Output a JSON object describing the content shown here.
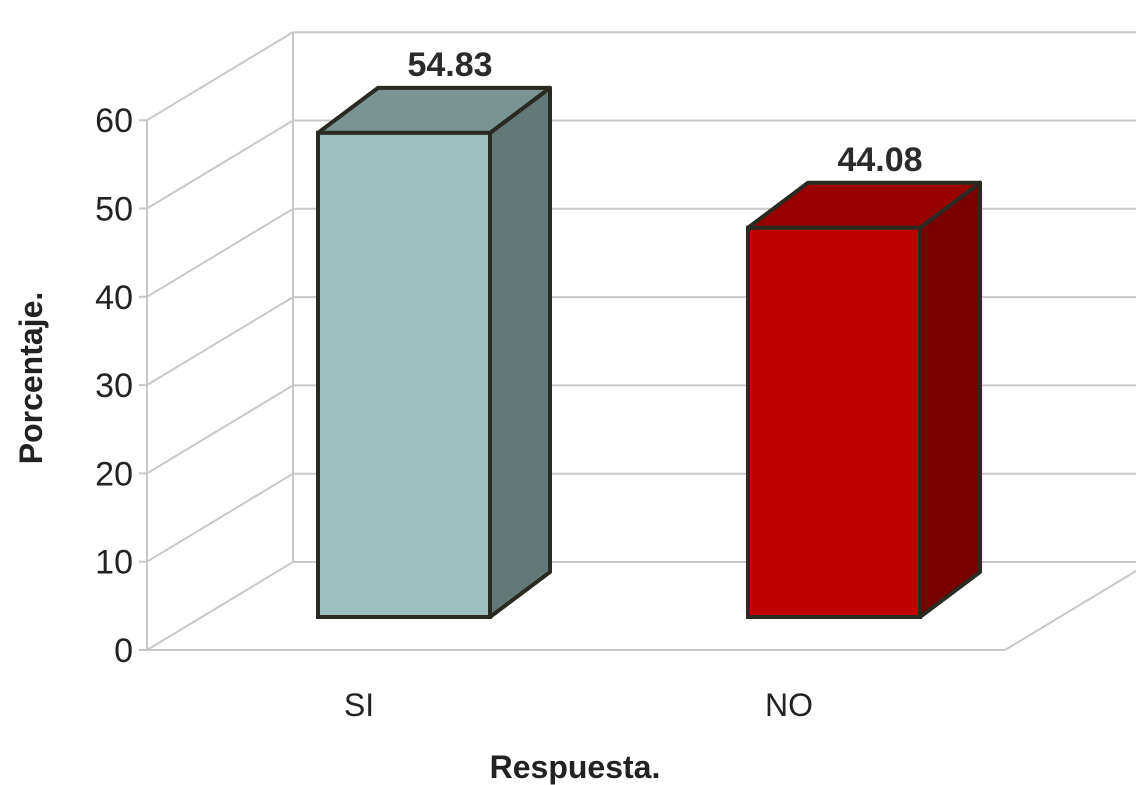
{
  "chart_data": {
    "type": "bar",
    "style": "3d-column",
    "categories": [
      "SI",
      "NO"
    ],
    "values": [
      54.83,
      44.08
    ],
    "data_labels": [
      "54.83",
      "44.08"
    ],
    "xlabel": "Respuesta.",
    "ylabel": "Porcentaje.",
    "ylim": [
      0,
      60
    ],
    "yticks": [
      "0",
      "10",
      "20",
      "30",
      "40",
      "50",
      "60"
    ],
    "grid": true,
    "legend": "none",
    "colors": {
      "SI": {
        "front": "#9dbfbd",
        "top": "#7a9493",
        "side": "#627978"
      },
      "NO": {
        "front": "#c00000",
        "top": "#990000",
        "side": "#7a0000"
      },
      "outline": "#2a2a22",
      "grid": "#c8c8c8"
    }
  }
}
